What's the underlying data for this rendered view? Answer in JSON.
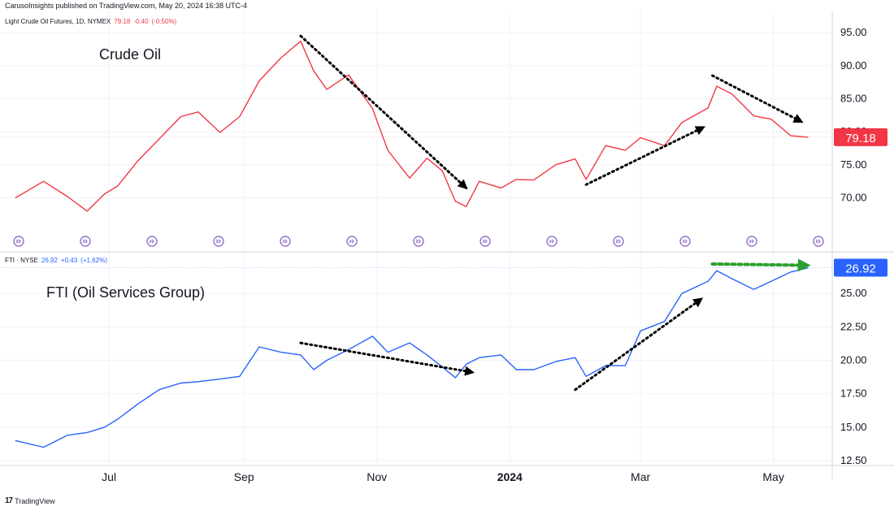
{
  "header": {
    "publisher_line": "CarusoInsights published on TradingView.com, May 20, 2024 16:38 UTC-4"
  },
  "footer": {
    "brand": "TradingView"
  },
  "colors": {
    "crude_line": "#f23645",
    "fti_line": "#2962ff",
    "crude_badge": "#f23645",
    "fti_badge": "#2962ff",
    "trend_arrow": "#000000",
    "flat_arrow": "#2ca02c",
    "grid": "#f0f3fa",
    "axis_text": "#131722",
    "event_icon": "#7e57c2"
  },
  "chart_data": [
    {
      "type": "line",
      "panel": "top",
      "legend": {
        "symbol": "Light Crude Oil Futures, 1D, NYMEX",
        "last": "79.18",
        "change": "-0.40",
        "change_pct": "(-0.50%)"
      },
      "annotation": "Crude Oil",
      "ylim": [
        67,
        96
      ],
      "y_ticks": [
        "95.00",
        "90.00",
        "85.00",
        "80.00",
        "75.00",
        "70.00"
      ],
      "last_price_badge": "79.18",
      "events_icon": "dividends-events-icon",
      "x": [
        "2023-05-19",
        "2023-06-01",
        "2023-06-12",
        "2023-06-21",
        "2023-06-29",
        "2023-07-05",
        "2023-07-14",
        "2023-07-24",
        "2023-08-03",
        "2023-08-11",
        "2023-08-21",
        "2023-08-30",
        "2023-09-08",
        "2023-09-18",
        "2023-09-27",
        "2023-10-03",
        "2023-10-09",
        "2023-10-19",
        "2023-10-30",
        "2023-11-06",
        "2023-11-16",
        "2023-11-24",
        "2023-12-01",
        "2023-12-07",
        "2023-12-12",
        "2023-12-18",
        "2023-12-28",
        "2024-01-04",
        "2024-01-12",
        "2024-01-22",
        "2024-01-31",
        "2024-02-05",
        "2024-02-14",
        "2024-02-23",
        "2024-03-01",
        "2024-03-12",
        "2024-03-20",
        "2024-04-01",
        "2024-04-05",
        "2024-04-12",
        "2024-04-22",
        "2024-04-30",
        "2024-05-09",
        "2024-05-17"
      ],
      "y": [
        70.0,
        72.5,
        70.2,
        68.0,
        70.6,
        71.8,
        75.5,
        78.9,
        82.3,
        83.0,
        79.9,
        82.3,
        87.7,
        91.2,
        93.7,
        89.2,
        86.4,
        88.6,
        83.5,
        77.2,
        73.0,
        76.0,
        74.1,
        69.5,
        68.7,
        72.5,
        71.5,
        72.8,
        72.7,
        75.0,
        75.9,
        72.8,
        77.9,
        77.2,
        79.1,
        77.9,
        81.4,
        83.6,
        86.9,
        85.7,
        82.4,
        81.9,
        79.4,
        79.18
      ]
    },
    {
      "type": "line",
      "panel": "bottom",
      "legend": {
        "symbol": "FTI · NYSE",
        "last": "26.92",
        "change": "+0.43",
        "change_pct": "(+1.62%)"
      },
      "annotation": "FTI (Oil Services Group)",
      "ylim": [
        12.5,
        27.5
      ],
      "y_ticks": [
        "25.00",
        "22.50",
        "20.00",
        "17.50",
        "15.00",
        "12.50"
      ],
      "last_price_badge": "26.92",
      "x": [
        "2023-05-19",
        "2023-06-01",
        "2023-06-12",
        "2023-06-21",
        "2023-06-29",
        "2023-07-05",
        "2023-07-14",
        "2023-07-24",
        "2023-08-03",
        "2023-08-11",
        "2023-08-21",
        "2023-08-30",
        "2023-09-08",
        "2023-09-18",
        "2023-09-27",
        "2023-10-03",
        "2023-10-09",
        "2023-10-19",
        "2023-10-30",
        "2023-11-06",
        "2023-11-16",
        "2023-11-24",
        "2023-12-01",
        "2023-12-07",
        "2023-12-12",
        "2023-12-18",
        "2023-12-28",
        "2024-01-04",
        "2024-01-12",
        "2024-01-22",
        "2024-01-31",
        "2024-02-05",
        "2024-02-14",
        "2024-02-23",
        "2024-03-01",
        "2024-03-12",
        "2024-03-20",
        "2024-04-01",
        "2024-04-05",
        "2024-04-12",
        "2024-04-22",
        "2024-04-30",
        "2024-05-09",
        "2024-05-17"
      ],
      "y": [
        14.0,
        13.5,
        14.4,
        14.6,
        15.0,
        15.6,
        16.7,
        17.8,
        18.3,
        18.4,
        18.6,
        18.8,
        21.0,
        20.6,
        20.4,
        19.3,
        20.0,
        20.8,
        21.8,
        20.6,
        21.3,
        20.4,
        19.5,
        18.7,
        19.7,
        20.2,
        20.4,
        19.3,
        19.3,
        19.9,
        20.2,
        18.8,
        19.6,
        19.6,
        22.2,
        22.9,
        25.0,
        25.9,
        26.7,
        26.1,
        25.3,
        25.9,
        26.6,
        26.92
      ]
    }
  ],
  "x_axis": {
    "ticks": [
      {
        "label": "Jul",
        "date": "2023-07-01"
      },
      {
        "label": "Sep",
        "date": "2023-09-01"
      },
      {
        "label": "Nov",
        "date": "2023-11-01"
      },
      {
        "label": "2024",
        "date": "2024-01-01"
      },
      {
        "label": "Mar",
        "date": "2024-03-01"
      },
      {
        "label": "May",
        "date": "2024-05-01"
      }
    ]
  },
  "trend_arrows": [
    {
      "panel": "top",
      "from": [
        "2023-09-27",
        94.5
      ],
      "to": [
        "2023-12-12",
        71.5
      ],
      "color": "black"
    },
    {
      "panel": "top",
      "from": [
        "2024-02-05",
        72.0
      ],
      "to": [
        "2024-03-30",
        80.7
      ],
      "color": "black"
    },
    {
      "panel": "top",
      "from": [
        "2024-04-03",
        88.5
      ],
      "to": [
        "2024-05-14",
        81.5
      ],
      "color": "black"
    },
    {
      "panel": "bottom",
      "from": [
        "2023-09-27",
        21.3
      ],
      "to": [
        "2023-12-15",
        19.1
      ],
      "color": "black"
    },
    {
      "panel": "bottom",
      "from": [
        "2024-01-31",
        17.8
      ],
      "to": [
        "2024-03-29",
        24.6
      ],
      "color": "black"
    },
    {
      "panel": "bottom",
      "from": [
        "2024-04-03",
        27.2
      ],
      "to": [
        "2024-05-17",
        27.1
      ],
      "color": "green"
    }
  ]
}
